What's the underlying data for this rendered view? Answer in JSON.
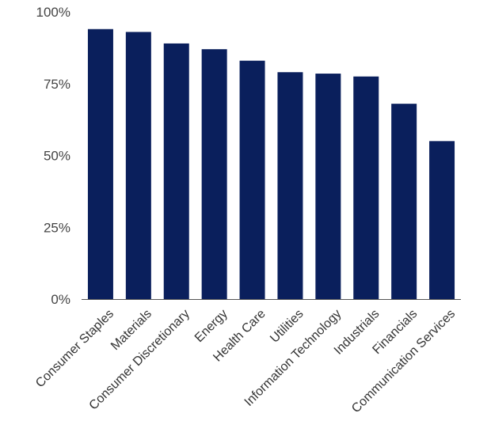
{
  "chart_data": {
    "type": "bar",
    "title": "",
    "xlabel": "",
    "ylabel": "",
    "ylim": [
      0,
      100
    ],
    "y_tick_labels": [
      "0%",
      "25%",
      "50%",
      "75%",
      "100%"
    ],
    "y_tick_values": [
      0,
      25,
      50,
      75,
      100
    ],
    "grid": false,
    "bar_color": "#0a1f5c",
    "categories": [
      "Consumer Staples",
      "Materials",
      "Consumer Discretionary",
      "Energy",
      "Health Care",
      "Utilities",
      "Information Technology",
      "Industrials",
      "Financials",
      "Communication Services"
    ],
    "values": [
      94,
      93,
      89,
      87,
      83,
      79,
      78.5,
      77.5,
      68,
      55
    ]
  }
}
